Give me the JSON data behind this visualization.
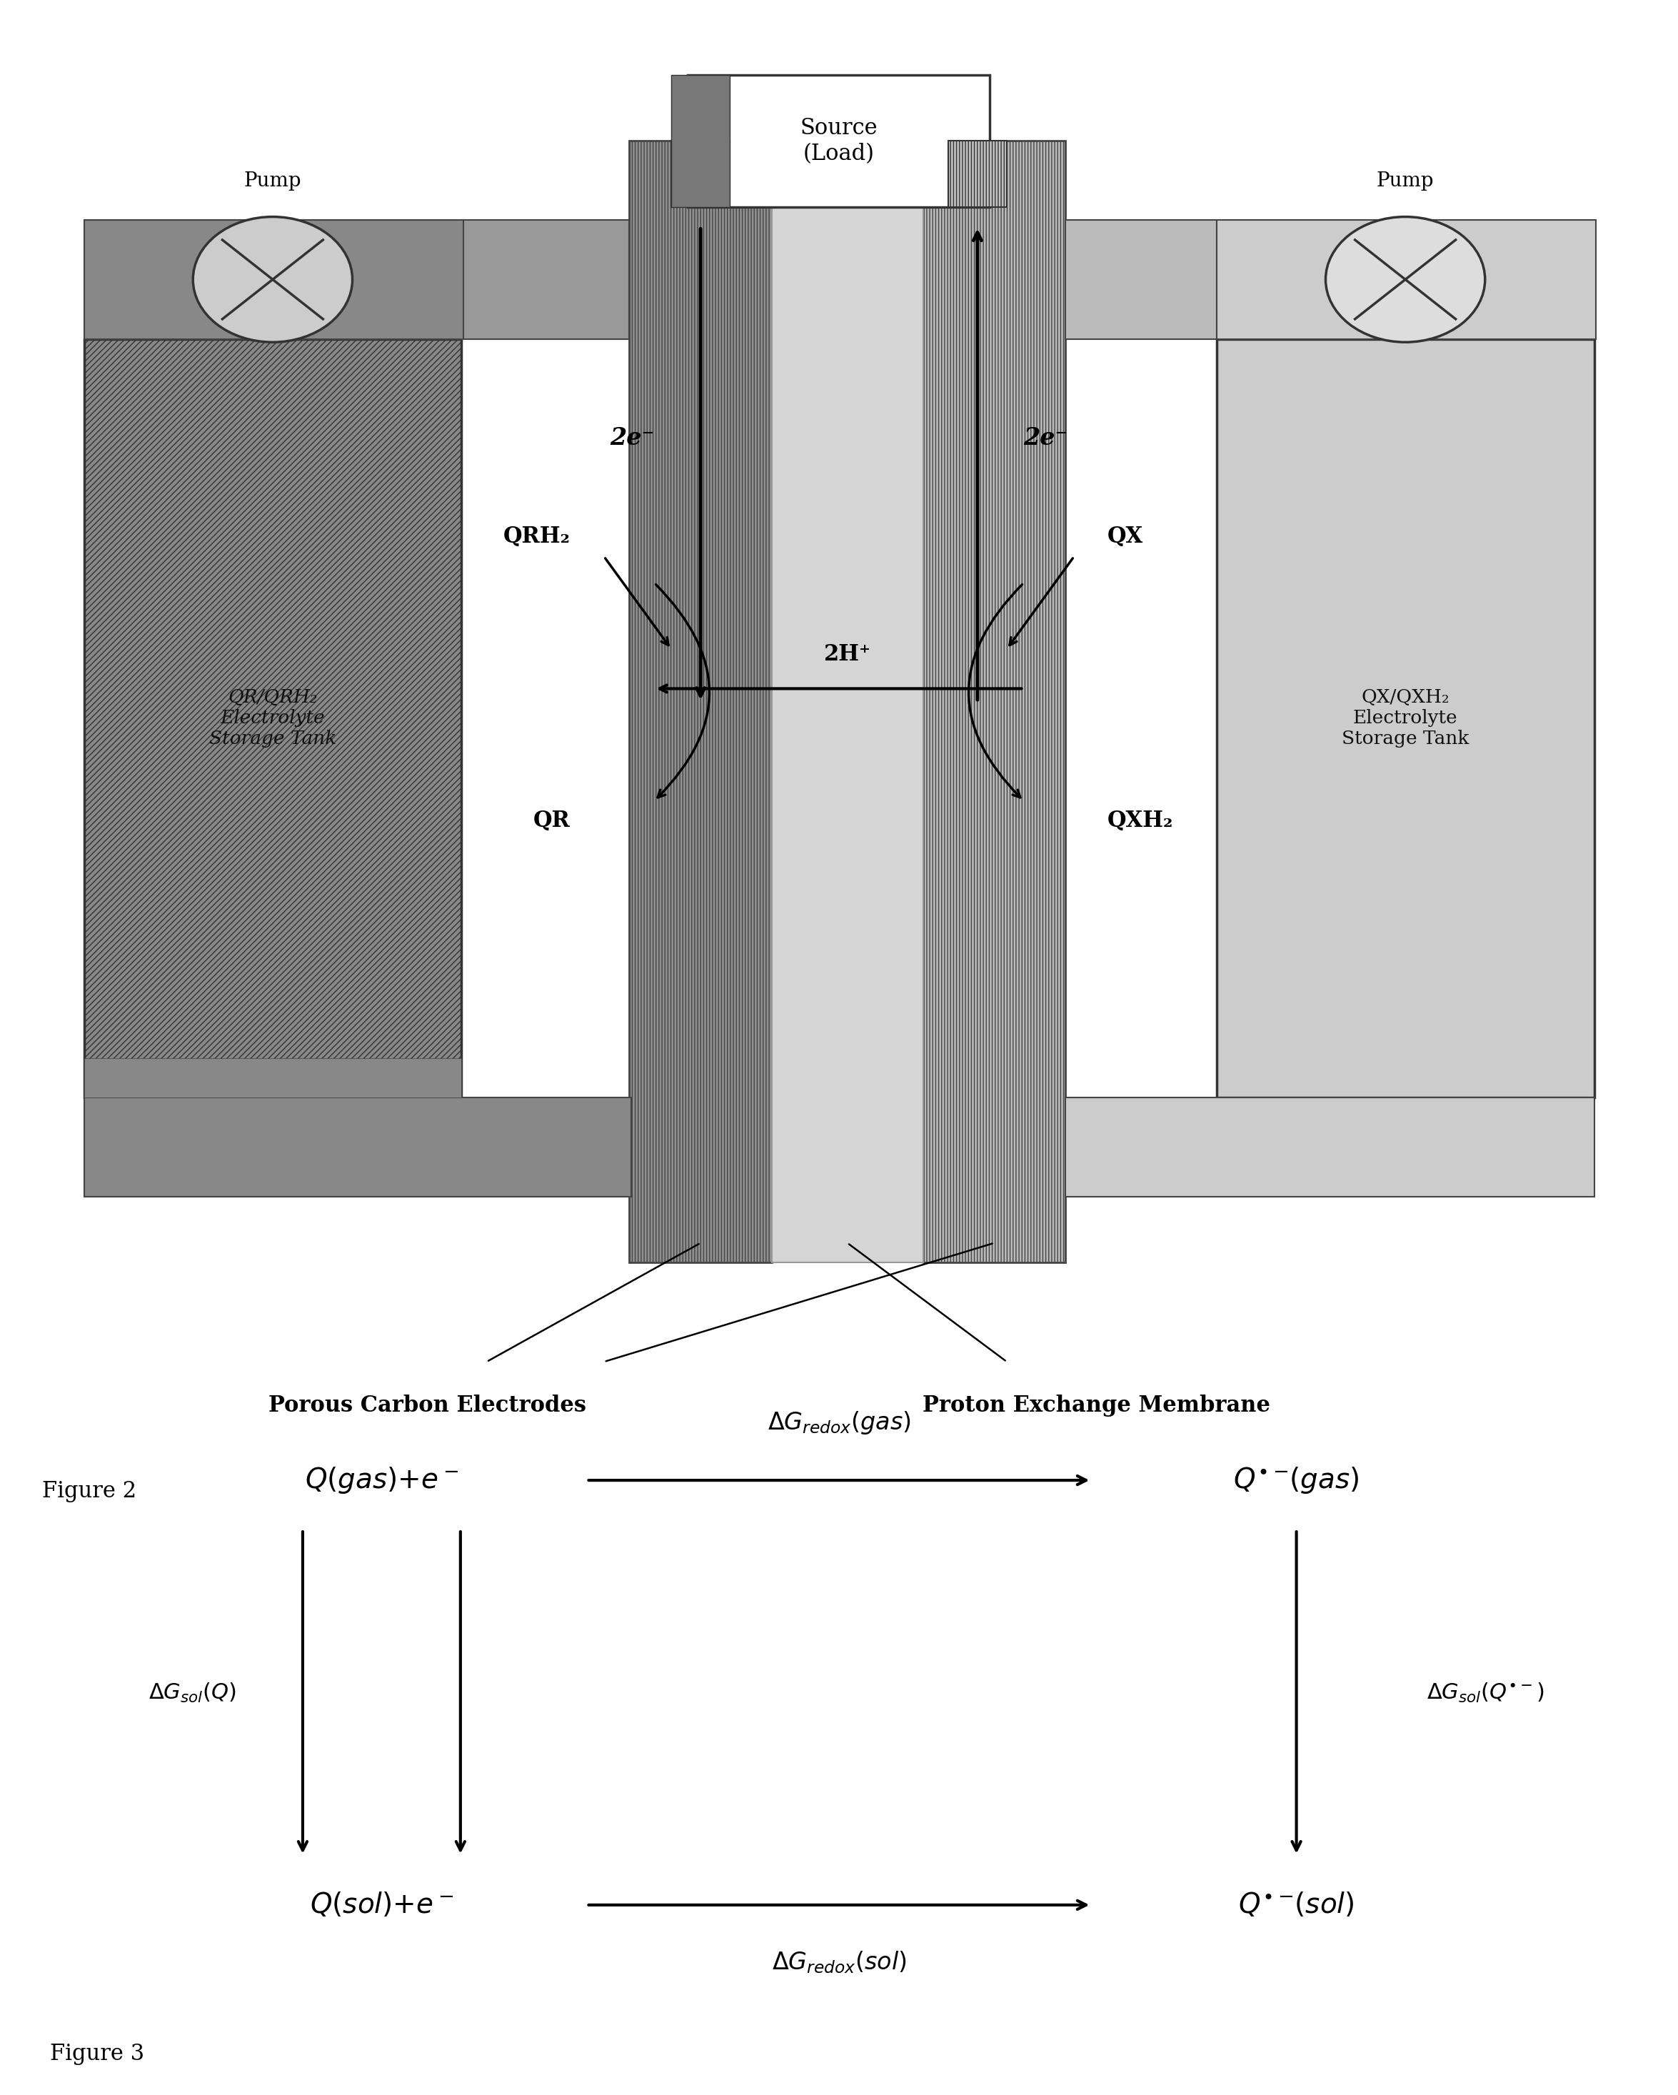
{
  "fig_width": 23.5,
  "fig_height": 29.34,
  "bg_color": "#ffffff",
  "figure2_label": "Figure 2",
  "figure3_label": "Figure 3",
  "source_label": "Source\n(Load)",
  "pump_left_label": "Pump",
  "pump_right_label": "Pump",
  "left_tank_label": "QR/QRH₂\nElectrolyte\nStorage Tank",
  "right_tank_label": "QX/QXH₂\nElectrolyte\nStorage Tank",
  "label_porous": "Porous Carbon Electrodes",
  "label_membrane": "Proton Exchange Membrane",
  "label_2e_left": "2e⁻",
  "label_2e_right": "2e⁻",
  "label_QRH2": "QRH₂",
  "label_QR": "QR",
  "label_QX": "QX",
  "label_QXH2": "QXH₂",
  "label_2H": "2H⁺"
}
